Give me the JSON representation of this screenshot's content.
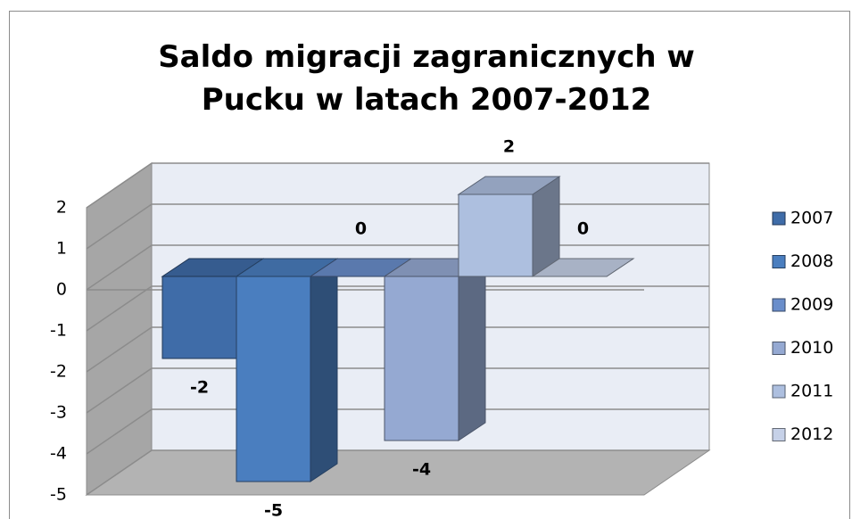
{
  "chart_data": {
    "type": "bar",
    "title": "Saldo migracji zagranicznych w Pucku w latach 2007-2012",
    "categories": [
      null
    ],
    "series": [
      {
        "name": "2007",
        "color": "#3f6ca8",
        "values": [
          -2
        ]
      },
      {
        "name": "2008",
        "color": "#4a7ebf",
        "values": [
          -5
        ]
      },
      {
        "name": "2009",
        "color": "#6a8ecb",
        "values": [
          0
        ]
      },
      {
        "name": "2010",
        "color": "#95a9d2",
        "values": [
          -4
        ]
      },
      {
        "name": "2011",
        "color": "#adbfdf",
        "values": [
          2
        ]
      },
      {
        "name": "2012",
        "color": "#c6d1e8",
        "values": [
          0
        ]
      }
    ],
    "ylim": [
      -5,
      2
    ],
    "yticks": [
      -5,
      -4,
      -3,
      -2,
      -1,
      0,
      1,
      2
    ],
    "grid": true,
    "legend": "right"
  }
}
